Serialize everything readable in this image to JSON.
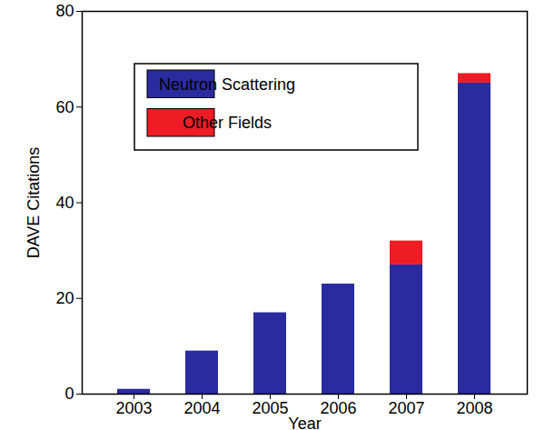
{
  "chart_data": {
    "type": "bar",
    "stacked": true,
    "categories": [
      "2003",
      "2004",
      "2005",
      "2006",
      "2007",
      "2008"
    ],
    "series": [
      {
        "name": "Neutron Scattering",
        "color": "#2b2ba0",
        "values": [
          1,
          9,
          17,
          23,
          27,
          65
        ]
      },
      {
        "name": "Other Fields",
        "color": "#ee1c25",
        "values": [
          0,
          0,
          0,
          0,
          5,
          2
        ]
      }
    ],
    "x_label": "Year",
    "y_label": "DAVE Citations",
    "ylim": [
      0,
      80
    ],
    "yticks": [
      0,
      20,
      40,
      60,
      80
    ],
    "legend": "top-left"
  }
}
